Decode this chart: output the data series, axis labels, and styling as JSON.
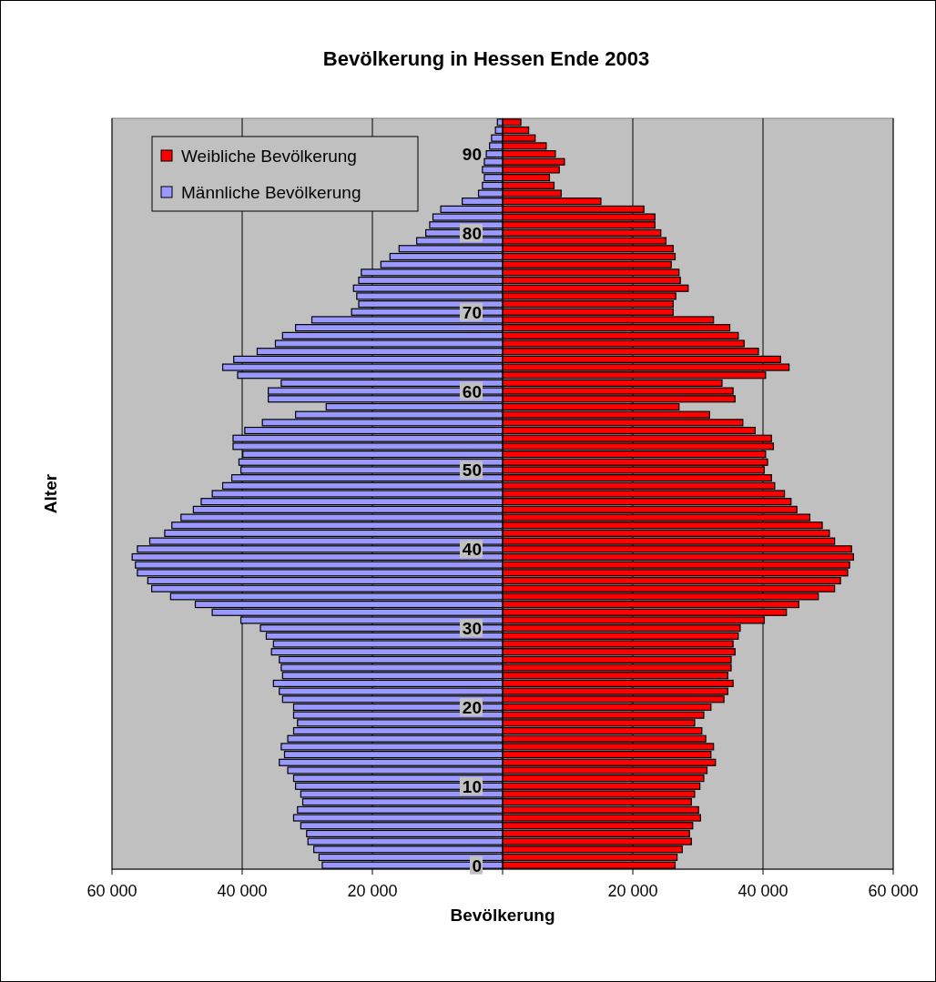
{
  "chart_data": {
    "type": "bar",
    "orientation": "horizontal",
    "stacked": true,
    "title": "Bevölkerung in Hessen Ende 2003",
    "xlabel": "Bevölkerung",
    "ylabel": "Alter",
    "categories": [
      null,
      null,
      null,
      null,
      "90",
      null,
      null,
      null,
      null,
      null,
      null,
      null,
      null,
      null,
      "80",
      null,
      null,
      null,
      null,
      null,
      null,
      null,
      null,
      null,
      "70",
      null,
      null,
      null,
      null,
      null,
      null,
      null,
      null,
      null,
      "60",
      null,
      null,
      null,
      null,
      null,
      null,
      null,
      null,
      null,
      "50",
      null,
      null,
      null,
      null,
      null,
      null,
      null,
      null,
      null,
      "40",
      null,
      null,
      null,
      null,
      null,
      null,
      null,
      null,
      null,
      "30",
      null,
      null,
      null,
      null,
      null,
      null,
      null,
      null,
      null,
      "20",
      null,
      null,
      null,
      null,
      null,
      null,
      null,
      null,
      null,
      "10",
      null,
      null,
      null,
      null,
      null,
      null,
      null,
      null,
      null,
      "0"
    ],
    "series": [
      {
        "name": "Weibliche Bevölkerung",
        "color": "#ff0000",
        "values": [
          2800,
          4000,
          5000,
          6700,
          8100,
          9500,
          8700,
          7200,
          7900,
          9000,
          15100,
          21700,
          23400,
          23400,
          24300,
          25100,
          26200,
          26500,
          25900,
          27100,
          27300,
          28500,
          26600,
          26200,
          26200,
          32400,
          34900,
          36200,
          37100,
          39300,
          42700,
          44000,
          40400,
          33700,
          35400,
          35700,
          27100,
          31800,
          36900,
          38800,
          41300,
          41600,
          40400,
          40700,
          40200,
          41300,
          41800,
          43300,
          44300,
          45200,
          47200,
          49100,
          50200,
          51000,
          53600,
          53900,
          53300,
          53000,
          51900,
          51000,
          48500,
          45500,
          43600,
          40200,
          36500,
          36200,
          35400,
          35700,
          35100,
          35100,
          34600,
          35400,
          34600,
          34000,
          32000,
          30900,
          29500,
          30600,
          31200,
          32400,
          32000,
          32700,
          31400,
          30900,
          30300,
          29500,
          29000,
          30100,
          30400,
          29200,
          28700,
          29000,
          27600,
          26800,
          26500
        ]
      },
      {
        "name": "Männliche Bevölkerung",
        "color": "#9999ff",
        "values": [
          -800,
          -1100,
          -1700,
          -2000,
          -2500,
          -2800,
          -3100,
          -2800,
          -3100,
          -3700,
          -6200,
          -9500,
          -10700,
          -11200,
          -11800,
          -13200,
          -15900,
          -17300,
          -18700,
          -21700,
          -22100,
          -22900,
          -22400,
          -22100,
          -23200,
          -29300,
          -31800,
          -33800,
          -34900,
          -37700,
          -41300,
          -43000,
          -40700,
          -34000,
          -36000,
          -36000,
          -27100,
          -31800,
          -36900,
          -39600,
          -41400,
          -41400,
          -39900,
          -40500,
          -40200,
          -41600,
          -43000,
          -44600,
          -46300,
          -47500,
          -49400,
          -50800,
          -51900,
          -54200,
          -56100,
          -56900,
          -56400,
          -56100,
          -54500,
          -53900,
          -51000,
          -47200,
          -44600,
          -40200,
          -37200,
          -36300,
          -35200,
          -35500,
          -34300,
          -34000,
          -33800,
          -35200,
          -34300,
          -33800,
          -32100,
          -32100,
          -31500,
          -32100,
          -33000,
          -34000,
          -33500,
          -34300,
          -33000,
          -32100,
          -31800,
          -31000,
          -30700,
          -31500,
          -32100,
          -31000,
          -30100,
          -29900,
          -29000,
          -28200,
          -27700
        ]
      }
    ],
    "xlim": [
      -60000,
      60000
    ],
    "xticks": [
      {
        "value": -60000,
        "label": "60 000"
      },
      {
        "value": -40000,
        "label": "40 000"
      },
      {
        "value": -20000,
        "label": "20 000"
      },
      {
        "value": 0,
        "label": null
      },
      {
        "value": 20000,
        "label": "20 000"
      },
      {
        "value": 40000,
        "label": "40 000"
      },
      {
        "value": 60000,
        "label": "60 000"
      }
    ],
    "grid": "x",
    "legend": "top left"
  }
}
